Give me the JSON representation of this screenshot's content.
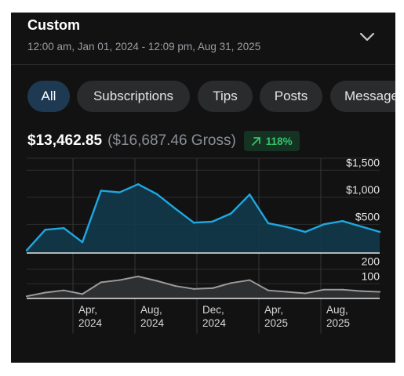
{
  "header": {
    "title": "Custom",
    "date_range": "12:00 am, Jan 01, 2024 - 12:09 pm, Aug 31, 2025"
  },
  "filters": [
    {
      "label": "All",
      "active": true
    },
    {
      "label": "Subscriptions",
      "active": false
    },
    {
      "label": "Tips",
      "active": false
    },
    {
      "label": "Posts",
      "active": false
    },
    {
      "label": "Messages",
      "active": false
    }
  ],
  "totals": {
    "net": "$13,462.85",
    "gross": "($16,687.46 Gross)",
    "growth": "118%"
  },
  "colors": {
    "accent": "#1ea7e1",
    "growth": "#34c46a",
    "secondary_line": "#9b9b9b"
  },
  "chart_data": [
    {
      "type": "area",
      "x": [
        "2024-01",
        "2024-02",
        "2024-03",
        "2024-04",
        "2024-05",
        "2024-06",
        "2024-07",
        "2024-08",
        "2024-09",
        "2024-10",
        "2024-11",
        "2024-12",
        "2025-01",
        "2025-02",
        "2025-03",
        "2025-04",
        "2025-05",
        "2025-06",
        "2025-07",
        "2025-08"
      ],
      "values": [
        50,
        430,
        460,
        200,
        1150,
        1120,
        1270,
        1090,
        820,
        560,
        580,
        730,
        1080,
        550,
        480,
        390,
        530,
        590,
        490,
        390
      ],
      "ylim": [
        0,
        1750
      ],
      "yticks": [
        "$1,500",
        "$1,000",
        "$500"
      ],
      "xticks": [
        [
          "Apr,",
          "2024"
        ],
        [
          "Aug,",
          "2024"
        ],
        [
          "Dec,",
          "2024"
        ],
        [
          "Apr,",
          "2025"
        ],
        [
          "Aug,",
          "2025"
        ]
      ],
      "grid": true
    },
    {
      "type": "area",
      "x": [
        "2024-01",
        "2024-02",
        "2024-03",
        "2024-04",
        "2024-05",
        "2024-06",
        "2024-07",
        "2024-08",
        "2024-09",
        "2024-10",
        "2024-11",
        "2024-12",
        "2025-01",
        "2025-02",
        "2025-03",
        "2025-04",
        "2025-05",
        "2025-06",
        "2025-07",
        "2025-08"
      ],
      "values": [
        15,
        40,
        55,
        30,
        110,
        125,
        150,
        120,
        85,
        65,
        70,
        105,
        125,
        55,
        45,
        35,
        60,
        60,
        50,
        45
      ],
      "ylim": [
        0,
        240
      ],
      "yticks": [
        "200",
        "100"
      ],
      "grid": true
    }
  ]
}
